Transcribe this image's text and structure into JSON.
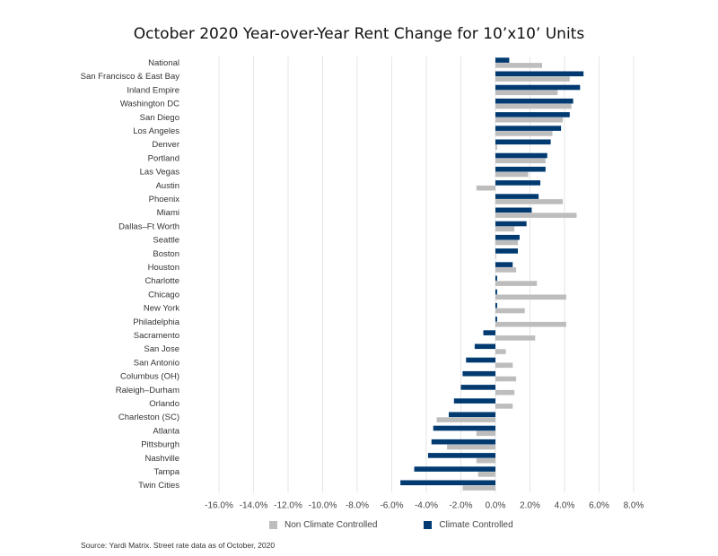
{
  "chart_data": {
    "type": "bar",
    "orientation": "horizontal",
    "title": "October 2020 Year-over-Year Rent Change for 10’x10’ Units",
    "categories": [
      "National",
      "San Francisco & East Bay",
      "Inland Empire",
      "Washington DC",
      "San Diego",
      "Los Angeles",
      "Denver",
      "Portland",
      "Las Vegas",
      "Austin",
      "Phoenix",
      "Miami",
      "Dallas–Ft Worth",
      "Seattle",
      "Boston",
      "Houston",
      "Charlotte",
      "Chicago",
      "New York",
      "Philadelphia",
      "Sacramento",
      "San Jose",
      "San Antonio",
      "Columbus (OH)",
      "Raleigh–Durham",
      "Orlando",
      "Charleston (SC)",
      "Atlanta",
      "Pittsburgh",
      "Nashville",
      "Tampa",
      "Twin Cities"
    ],
    "series": [
      {
        "name": "Non Climate Controlled",
        "color": "#bdbdbd",
        "values": [
          2.7,
          4.3,
          3.6,
          4.4,
          3.9,
          3.3,
          0.1,
          2.9,
          1.9,
          -1.1,
          3.9,
          4.7,
          1.1,
          1.3,
          0.0,
          1.2,
          2.4,
          4.1,
          1.7,
          4.1,
          2.3,
          0.6,
          1.0,
          1.2,
          1.1,
          1.0,
          -3.4,
          -1.1,
          -2.8,
          -1.1,
          -1.0,
          -1.9
        ]
      },
      {
        "name": "Climate Controlled",
        "color": "#003a70",
        "values": [
          0.8,
          5.1,
          4.9,
          4.5,
          4.3,
          3.8,
          3.2,
          3.0,
          2.9,
          2.6,
          2.5,
          2.1,
          1.8,
          1.4,
          1.3,
          1.0,
          0.1,
          0.1,
          0.1,
          0.1,
          -0.7,
          -1.2,
          -1.7,
          -1.9,
          -2.0,
          -2.4,
          -2.7,
          -3.6,
          -3.7,
          -3.9,
          -4.7,
          -5.5
        ]
      }
    ],
    "xlim": [
      -16,
      8
    ],
    "xticks": [
      "-16.0%",
      "-14.0%",
      "-12.0%",
      "-10.0%",
      "-8.0%",
      "-6.0%",
      "-4.0%",
      "-2.0%",
      "0.0%",
      "2.0%",
      "4.0%",
      "6.0%",
      "8.0%"
    ],
    "xtick_values": [
      -16,
      -14,
      -12,
      -10,
      -8,
      -6,
      -4,
      -2,
      0,
      2,
      4,
      6,
      8
    ],
    "grid": true,
    "legend": "bottom",
    "source": "Source: Yardi Matrix. Street rate data as of October, 2020"
  }
}
